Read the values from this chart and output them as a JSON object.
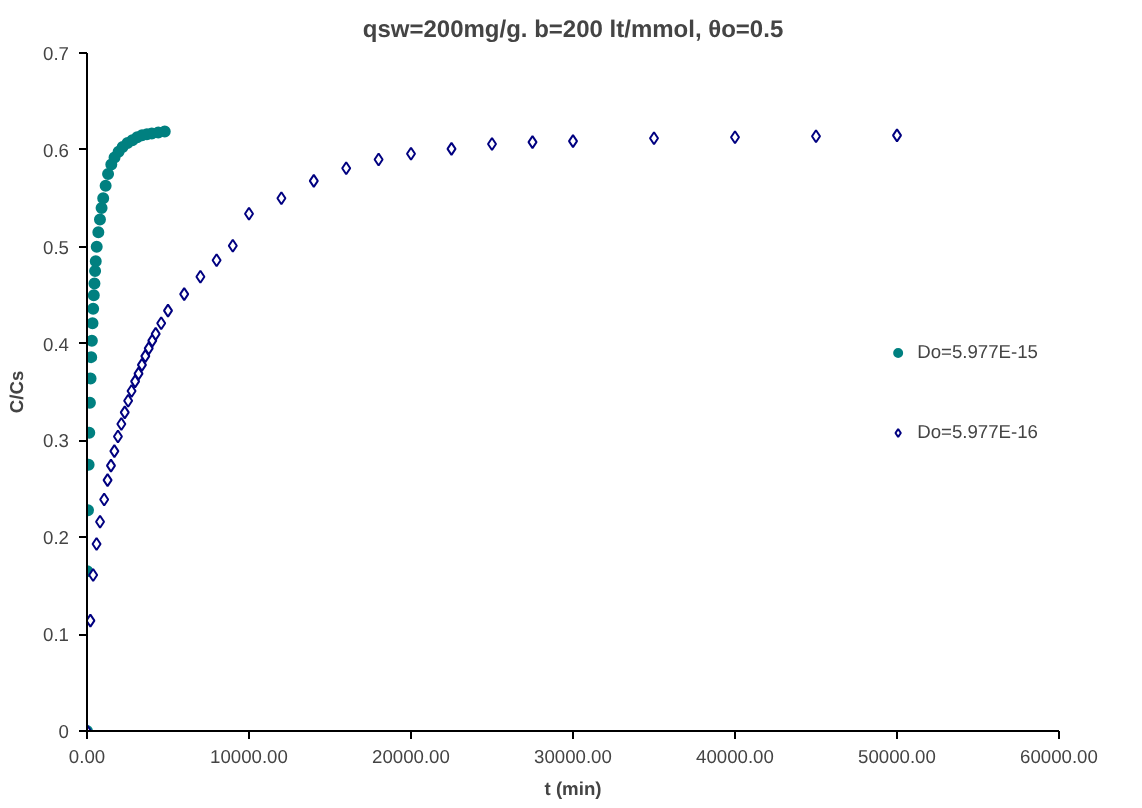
{
  "chart_data": {
    "type": "scatter",
    "title": "qsw=200mg/g. b=200 lt/mmol, θo=0.5",
    "xlabel": "t (min)",
    "ylabel": "C/Cs",
    "xlim": [
      0,
      60000
    ],
    "ylim": [
      0,
      0.7
    ],
    "xticks": [
      {
        "value": 0,
        "label": "0.00"
      },
      {
        "value": 10000,
        "label": "10000.00"
      },
      {
        "value": 20000,
        "label": "20000.00"
      },
      {
        "value": 30000,
        "label": "30000.00"
      },
      {
        "value": 40000,
        "label": "40000.00"
      },
      {
        "value": 50000,
        "label": "50000.00"
      },
      {
        "value": 60000,
        "label": "60000.00"
      }
    ],
    "yticks": [
      0,
      0.1,
      0.2,
      0.3,
      0.4,
      0.5,
      0.6,
      0.7
    ],
    "grid": false,
    "legend": "right",
    "series": [
      {
        "name": "Do=5.977E-15",
        "color": "#008080",
        "marker": "circle",
        "x": [
          0,
          20,
          60,
          100,
          140,
          180,
          220,
          260,
          300,
          340,
          380,
          420,
          460,
          500,
          540,
          600,
          700,
          800,
          900,
          1000,
          1150,
          1300,
          1500,
          1700,
          1950,
          2200,
          2500,
          2800,
          3100,
          3400,
          3700,
          4000,
          4400,
          4800
        ],
        "values": [
          0,
          0.165,
          0.228,
          0.275,
          0.308,
          0.339,
          0.364,
          0.386,
          0.403,
          0.421,
          0.436,
          0.45,
          0.462,
          0.475,
          0.485,
          0.5,
          0.515,
          0.528,
          0.54,
          0.55,
          0.563,
          0.575,
          0.585,
          0.592,
          0.598,
          0.603,
          0.607,
          0.61,
          0.613,
          0.615,
          0.616,
          0.617,
          0.618,
          0.619
        ]
      },
      {
        "name": "Do=5.977E-16",
        "color": "#000080",
        "marker": "diamond",
        "x": [
          0,
          210,
          380,
          590,
          805,
          1060,
          1270,
          1480,
          1690,
          1910,
          2120,
          2330,
          2540,
          2750,
          2970,
          3180,
          3390,
          3600,
          3810,
          4030,
          4240,
          4580,
          5000,
          6000,
          7000,
          8000,
          9000,
          10000,
          12000,
          14000,
          16000,
          18000,
          20000,
          22500,
          25000,
          27500,
          30000,
          35000,
          40000,
          45000,
          50000
        ],
        "values": [
          0,
          0.114,
          0.161,
          0.193,
          0.216,
          0.239,
          0.259,
          0.274,
          0.289,
          0.304,
          0.317,
          0.329,
          0.341,
          0.351,
          0.361,
          0.369,
          0.378,
          0.387,
          0.395,
          0.403,
          0.41,
          0.421,
          0.434,
          0.451,
          0.469,
          0.486,
          0.501,
          0.534,
          0.55,
          0.568,
          0.581,
          0.59,
          0.596,
          0.601,
          0.606,
          0.608,
          0.609,
          0.612,
          0.613,
          0.614,
          0.615
        ]
      }
    ]
  }
}
